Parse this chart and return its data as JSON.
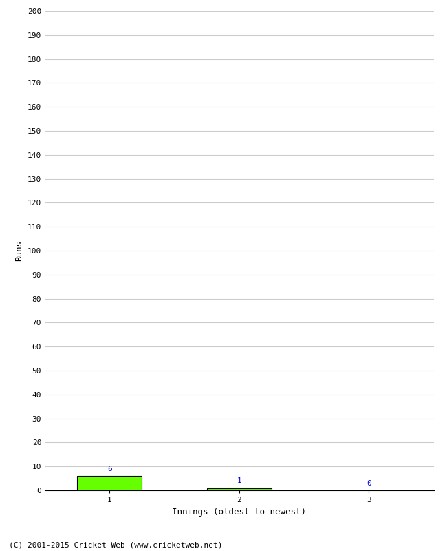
{
  "innings": [
    1,
    2,
    3
  ],
  "runs": [
    6,
    1,
    0
  ],
  "bar_color": "#66ff00",
  "bar_edge_color": "#000000",
  "xlabel": "Innings (oldest to newest)",
  "ylabel": "Runs",
  "ylim": [
    0,
    200
  ],
  "ytick_step": 10,
  "footer": "(C) 2001-2015 Cricket Web (www.cricketweb.net)",
  "annotation_color": "#0000cc",
  "background_color": "#ffffff",
  "grid_color": "#cccccc"
}
